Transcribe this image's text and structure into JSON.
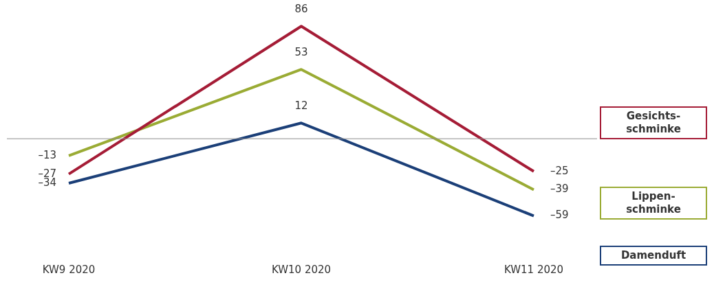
{
  "chart_data": {
    "type": "line",
    "categories": [
      "KW9 2020",
      "KW10 2020",
      "KW11 2020"
    ],
    "series": [
      {
        "name": "Gesichts-schminke",
        "color": "#a51c36",
        "values": [
          -27,
          86,
          -25
        ],
        "value_labels": [
          "–27",
          "86",
          "–25"
        ]
      },
      {
        "name": "Lippen-schminke",
        "color": "#9aab34",
        "values": [
          -13,
          53,
          -39
        ],
        "value_labels": [
          "–13",
          "53",
          "–39"
        ]
      },
      {
        "name": "Damenduft",
        "color": "#1b3f78",
        "values": [
          -34,
          12,
          -59
        ],
        "value_labels": [
          "–34",
          "12",
          "–59"
        ]
      }
    ],
    "ref_lines": [
      {
        "axis": "y",
        "value": 0,
        "color": "#8c8c8c"
      }
    ],
    "legend": "right",
    "grid": false,
    "marker": "none",
    "line_style": "solid"
  }
}
